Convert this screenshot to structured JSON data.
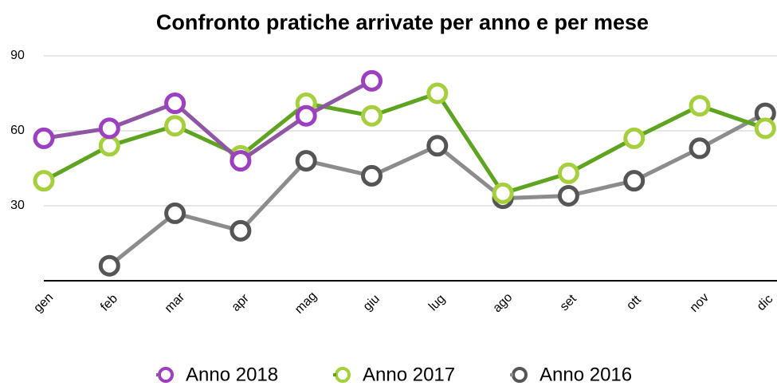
{
  "chart_data": {
    "type": "line",
    "title": "Confronto pratiche arrivate per anno e per mese",
    "categories": [
      "gen",
      "feb",
      "mar",
      "apr",
      "mag",
      "giu",
      "lug",
      "ago",
      "set",
      "ott",
      "nov",
      "dic"
    ],
    "series": [
      {
        "name": "Anno 2018",
        "color": "#8e56a3",
        "marker_color": "#9c3fc1",
        "values": [
          57,
          61,
          71,
          48,
          66,
          80,
          null,
          null,
          null,
          null,
          null,
          null
        ]
      },
      {
        "name": "Anno 2017",
        "color": "#5ea421",
        "marker_color": "#a5cf3c",
        "values": [
          40,
          54,
          62,
          50,
          71,
          66,
          75,
          35,
          43,
          57,
          70,
          61
        ]
      },
      {
        "name": "Anno 2016",
        "color": "#8c8c8c",
        "marker_color": "#555555",
        "values": [
          null,
          6,
          27,
          20,
          48,
          42,
          54,
          33,
          34,
          40,
          53,
          67
        ]
      }
    ],
    "ylim": [
      0,
      90
    ],
    "yticks": [
      30,
      60,
      90
    ],
    "grid": true,
    "legend": "bottom"
  }
}
